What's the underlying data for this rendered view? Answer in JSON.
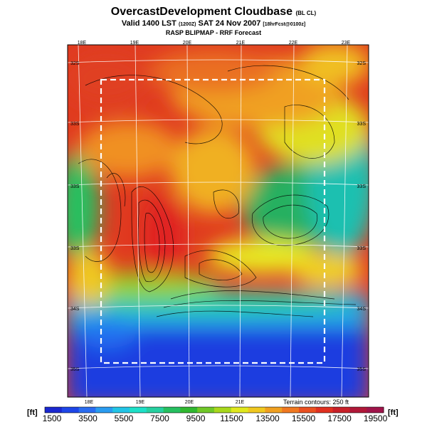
{
  "title": {
    "main": "OvercastDevelopment Cloudbase",
    "main_suffix": "(BL CL)",
    "valid_prefix": "Valid 1400 LST",
    "valid_small_1": "(1200Z)",
    "valid_main": "SAT 24 Nov 2007",
    "valid_small_2": "[18hrFcst@0100z]",
    "subtitle": "RASP BLIPMAP - RRF Forecast"
  },
  "map": {
    "lon_labels_top": [
      "18E",
      "19E",
      "20E",
      "21E",
      "22E",
      "23E"
    ],
    "lon_labels_bottom": [
      "18E",
      "19E",
      "20E",
      "21E"
    ],
    "lat_labels_left": [
      "32S",
      "33S",
      "33S",
      "33S",
      "34S",
      "35S"
    ],
    "lat_labels_right": [
      "32S",
      "33S",
      "33S",
      "33S",
      "34S",
      "35S"
    ],
    "terrain_note": "Terrain contours: 250 ft"
  },
  "colorbar": {
    "unit_label": "[ft]",
    "labels": [
      "1500",
      "3500",
      "5500",
      "7500",
      "9500",
      "11500",
      "13500",
      "15500",
      "17500",
      "19500"
    ],
    "colors": [
      "#1a28d0",
      "#1e46e8",
      "#2a6cf0",
      "#2a9cf0",
      "#22c4e6",
      "#1ee0c8",
      "#26d0a0",
      "#26c060",
      "#30b830",
      "#70c828",
      "#a8d81c",
      "#e0e81e",
      "#f0c820",
      "#f0a020",
      "#f07820",
      "#ea5020",
      "#e03020",
      "#c82028",
      "#b01838",
      "#a0144a"
    ]
  }
}
